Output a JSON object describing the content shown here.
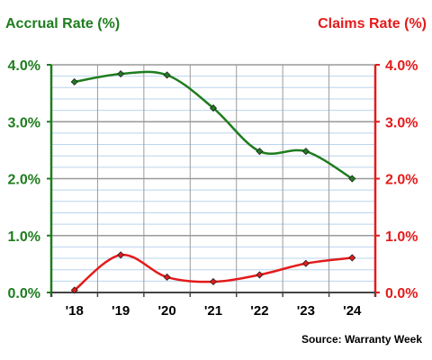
{
  "chart_data": {
    "type": "line",
    "left_axis_title": "Accrual Rate (%)",
    "right_axis_title": "Claims Rate (%)",
    "source": "Source: Warranty Week",
    "categories": [
      "'18",
      "'19",
      "'20",
      "'21",
      "'22",
      "'23",
      "'24"
    ],
    "y_ticks": [
      "0.0%",
      "1.0%",
      "2.0%",
      "3.0%",
      "4.0%"
    ],
    "ylim": [
      0,
      4
    ],
    "minor_gridlines": true,
    "major_gridlines": true,
    "series": [
      {
        "name": "Accrual Rate (%)",
        "axis": "left",
        "color": "#1e7d1e",
        "values": [
          3.7,
          3.84,
          3.82,
          3.24,
          2.48,
          2.48,
          2.0
        ]
      },
      {
        "name": "Claims Rate (%)",
        "axis": "right",
        "color": "#e31b1b",
        "values": [
          0.04,
          0.66,
          0.27,
          0.19,
          0.31,
          0.51,
          0.61
        ]
      }
    ]
  }
}
